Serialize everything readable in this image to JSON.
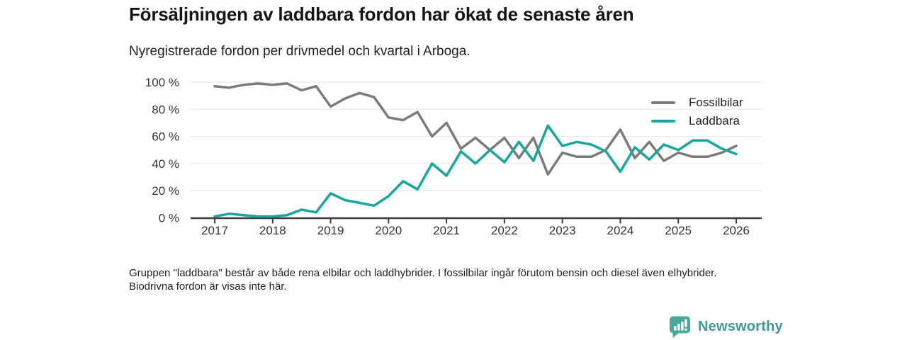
{
  "header": {
    "title": "Försäljningen av laddbara fordon har ökat de senaste åren",
    "subtitle": "Nyregistrerade fordon per drivmedel och kvartal i Arboga."
  },
  "chart_data": {
    "type": "line",
    "unit": "%",
    "grid": "horizontal",
    "legend_position": "top-right",
    "ylim": [
      0,
      100
    ],
    "y_tick_values": [
      0,
      20,
      40,
      60,
      80,
      100
    ],
    "y_tick_labels": [
      "0 %",
      "20 %",
      "40 %",
      "60 %",
      "80 %",
      "100 %"
    ],
    "x_tick_labels": [
      "2017",
      "2018",
      "2019",
      "2020",
      "2021",
      "2022",
      "2023",
      "2024",
      "2025",
      "2026"
    ],
    "quarters": [
      "2017 Q1",
      "2017 Q2",
      "2017 Q3",
      "2017 Q4",
      "2018 Q1",
      "2018 Q2",
      "2018 Q3",
      "2018 Q4",
      "2019 Q1",
      "2019 Q2",
      "2019 Q3",
      "2019 Q4",
      "2020 Q1",
      "2020 Q2",
      "2020 Q3",
      "2020 Q4",
      "2021 Q1",
      "2021 Q2",
      "2021 Q3",
      "2021 Q4",
      "2022 Q1",
      "2022 Q2",
      "2022 Q3",
      "2022 Q4",
      "2023 Q1",
      "2023 Q2",
      "2023 Q3",
      "2023 Q4",
      "2024 Q1",
      "2024 Q2",
      "2024 Q3",
      "2024 Q4",
      "2025 Q1",
      "2025 Q2",
      "2025 Q3",
      "2025 Q4",
      "2026 Q1"
    ],
    "series": [
      {
        "name": "Fossilbilar",
        "color": "#7b7b7b",
        "values": [
          97,
          96,
          98,
          99,
          98,
          99,
          94,
          97,
          82,
          88,
          92,
          89,
          74,
          72,
          78,
          60,
          70,
          51,
          59,
          50,
          59,
          44,
          59,
          32,
          48,
          45,
          45,
          50,
          65,
          44,
          56,
          42,
          48,
          45,
          45,
          48,
          53
        ]
      },
      {
        "name": "Laddbara",
        "color": "#17a79e",
        "values": [
          1,
          3,
          2,
          1,
          1,
          2,
          6,
          4,
          18,
          13,
          11,
          9,
          16,
          27,
          21,
          40,
          31,
          49,
          40,
          50,
          41,
          56,
          42,
          68,
          53,
          56,
          54,
          49,
          34,
          52,
          43,
          54,
          50,
          57,
          57,
          51,
          47
        ]
      }
    ],
    "colors": {
      "gridline": "#e4e4e4",
      "axis": "#3d3d3d",
      "tick_label": "#333333"
    }
  },
  "footnote": {
    "text": "Gruppen \"laddbara\" består av både rena elbilar och laddhybrider. I fossilbilar ingår förutom bensin och diesel även elhybrider. Biodrivna fordon är visas inte här."
  },
  "branding": {
    "name": "Newsworthy",
    "wordmark_color": "#3f9b90",
    "icon_color": "#47a89c",
    "icon": "bar-chart-speech-bubble-icon"
  }
}
